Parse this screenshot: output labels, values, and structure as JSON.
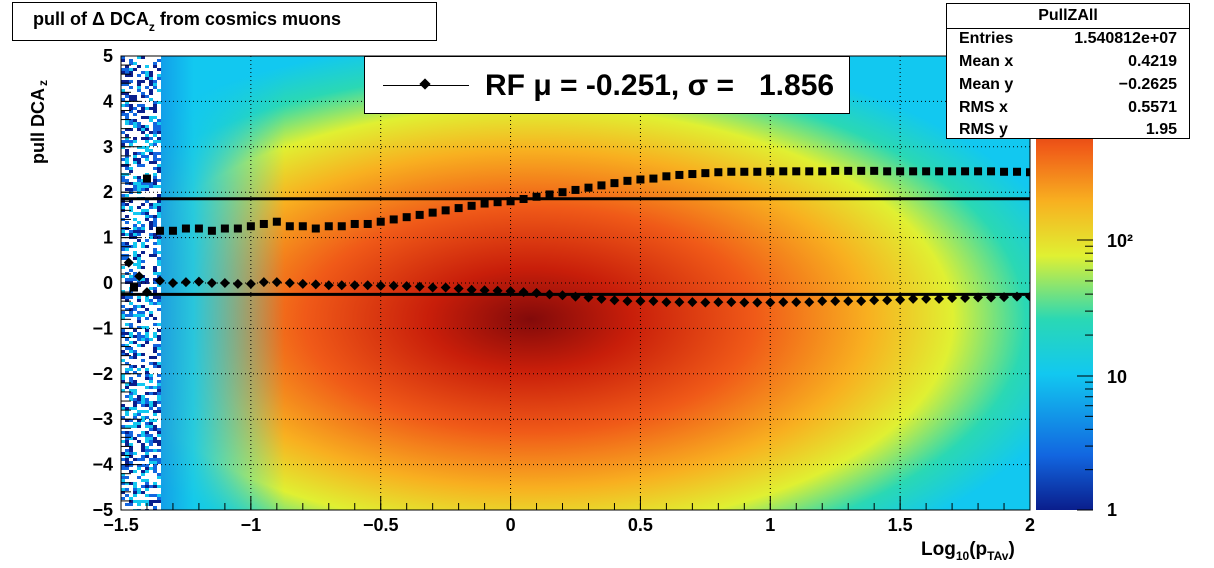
{
  "title": {
    "main": "pull of Δ DCA",
    "sub": "z",
    "tail": " from cosmics muons"
  },
  "stats": {
    "name": "PullZAll",
    "rows": [
      {
        "label": "Entries",
        "value": "1.540812e+07"
      },
      {
        "label": "Mean x",
        "value": "0.4219"
      },
      {
        "label": "Mean y",
        "value": "−0.2625"
      },
      {
        "label": "RMS x",
        "value": "0.5571"
      },
      {
        "label": "RMS y",
        "value": "1.95"
      }
    ]
  },
  "legend": {
    "label": "RF μ = -0.251, σ =   1.856"
  },
  "axes": {
    "ylabel_main": "pull DCA",
    "ylabel_sub": "z",
    "xlabel_pre": "Log",
    "xlabel_sub1": "10",
    "xlabel_mid": "(p",
    "xlabel_sub2": "TAv",
    "xlabel_post": ")"
  },
  "chart_data": {
    "type": "heatmap",
    "xlim": [
      -1.5,
      2
    ],
    "ylim": [
      -5,
      5
    ],
    "xticks": [
      "−1.5",
      "−1",
      "−0.5",
      "0",
      "0.5",
      "1",
      "1.5",
      "2"
    ],
    "xtick_values": [
      -1.5,
      -1,
      -0.5,
      0,
      0.5,
      1,
      1.5,
      2
    ],
    "yticks": [
      "−5",
      "−4",
      "−3",
      "−2",
      "−1",
      "0",
      "1",
      "2",
      "3",
      "4",
      "5"
    ],
    "ytick_values": [
      -5,
      -4,
      -3,
      -2,
      -1,
      0,
      1,
      2,
      3,
      4,
      5
    ],
    "zscale": "log",
    "zticks": [
      "1",
      "10",
      "10²"
    ],
    "grid": true,
    "mean_fit": -0.251,
    "sigma_fit": 1.856,
    "colors": {
      "palette": [
        "#0a1e8c",
        "#1266e0",
        "#12c8f0",
        "#2ad8b4",
        "#e0f032",
        "#f8b020",
        "#f05a18",
        "#c81e0a",
        "#820a0a"
      ]
    },
    "series": [
      {
        "marker": "square",
        "x": [
          -1.45,
          -1.4,
          -1.35,
          -1.3,
          -1.25,
          -1.2,
          -1.15,
          -1.1,
          -1.05,
          -1.0,
          -0.95,
          -0.9,
          -0.85,
          -0.8,
          -0.75,
          -0.7,
          -0.65,
          -0.6,
          -0.55,
          -0.5,
          -0.45,
          -0.4,
          -0.35,
          -0.3,
          -0.25,
          -0.2,
          -0.15,
          -0.1,
          -0.05,
          0.0,
          0.05,
          0.1,
          0.15,
          0.2,
          0.25,
          0.3,
          0.35,
          0.4,
          0.45,
          0.5,
          0.55,
          0.6,
          0.65,
          0.7,
          0.75,
          0.8,
          0.85,
          0.9,
          0.95,
          1.0,
          1.05,
          1.1,
          1.15,
          1.2,
          1.25,
          1.3,
          1.35,
          1.4,
          1.45,
          1.5,
          1.55,
          1.6,
          1.65,
          1.7,
          1.75,
          1.8,
          1.85,
          1.9,
          1.95,
          2.0
        ],
        "y": [
          -0.1,
          2.3,
          1.15,
          1.15,
          1.2,
          1.2,
          1.15,
          1.2,
          1.2,
          1.25,
          1.3,
          1.35,
          1.25,
          1.25,
          1.2,
          1.25,
          1.25,
          1.3,
          1.3,
          1.35,
          1.4,
          1.45,
          1.5,
          1.55,
          1.6,
          1.65,
          1.7,
          1.75,
          1.78,
          1.8,
          1.85,
          1.9,
          1.95,
          2.0,
          2.05,
          2.1,
          2.15,
          2.2,
          2.25,
          2.28,
          2.3,
          2.35,
          2.38,
          2.4,
          2.42,
          2.44,
          2.45,
          2.45,
          2.45,
          2.46,
          2.46,
          2.46,
          2.46,
          2.46,
          2.47,
          2.47,
          2.47,
          2.47,
          2.46,
          2.46,
          2.46,
          2.46,
          2.46,
          2.46,
          2.46,
          2.46,
          2.46,
          2.45,
          2.45,
          2.44
        ]
      },
      {
        "marker": "diamond",
        "x": [
          -1.47,
          -1.43,
          -1.4,
          -1.35,
          -1.3,
          -1.25,
          -1.2,
          -1.15,
          -1.1,
          -1.05,
          -1.0,
          -0.95,
          -0.9,
          -0.85,
          -0.8,
          -0.75,
          -0.7,
          -0.65,
          -0.6,
          -0.55,
          -0.5,
          -0.45,
          -0.4,
          -0.35,
          -0.3,
          -0.25,
          -0.2,
          -0.15,
          -0.1,
          -0.05,
          0.0,
          0.05,
          0.1,
          0.15,
          0.2,
          0.25,
          0.3,
          0.35,
          0.4,
          0.45,
          0.5,
          0.55,
          0.6,
          0.65,
          0.7,
          0.75,
          0.8,
          0.85,
          0.9,
          0.95,
          1.0,
          1.05,
          1.1,
          1.15,
          1.2,
          1.25,
          1.3,
          1.35,
          1.4,
          1.45,
          1.5,
          1.55,
          1.6,
          1.65,
          1.7,
          1.75,
          1.8,
          1.85,
          1.9,
          1.95,
          2.0
        ],
        "y": [
          0.45,
          0.15,
          -0.2,
          0.05,
          0.0,
          0.02,
          0.03,
          0.0,
          0.0,
          -0.02,
          -0.02,
          0.02,
          0.02,
          0.0,
          -0.02,
          -0.03,
          -0.05,
          -0.05,
          -0.05,
          -0.05,
          -0.06,
          -0.06,
          -0.07,
          -0.08,
          -0.1,
          -0.1,
          -0.12,
          -0.15,
          -0.16,
          -0.17,
          -0.18,
          -0.2,
          -0.22,
          -0.25,
          -0.27,
          -0.3,
          -0.32,
          -0.35,
          -0.38,
          -0.4,
          -0.4,
          -0.4,
          -0.42,
          -0.42,
          -0.42,
          -0.43,
          -0.42,
          -0.42,
          -0.43,
          -0.43,
          -0.43,
          -0.42,
          -0.42,
          -0.42,
          -0.4,
          -0.4,
          -0.4,
          -0.4,
          -0.38,
          -0.38,
          -0.37,
          -0.35,
          -0.35,
          -0.35,
          -0.33,
          -0.33,
          -0.32,
          -0.32,
          -0.31,
          -0.3,
          -0.3
        ]
      }
    ]
  }
}
